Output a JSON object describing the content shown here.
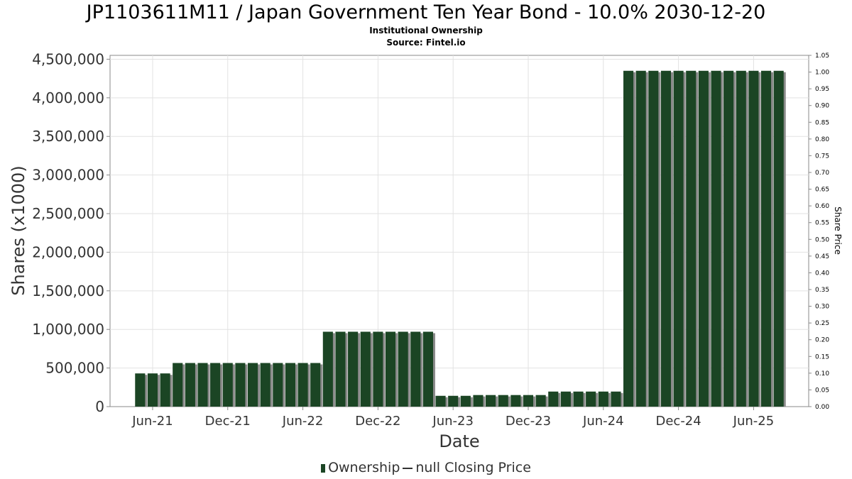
{
  "header": {
    "title": "JP1103611M11 / Japan Government Ten Year Bond - 10.0% 2030-12-20",
    "subtitle": "Institutional Ownership",
    "source": "Source: Fintel.io"
  },
  "legend": {
    "ownership": "Ownership",
    "price": "null Closing Price"
  },
  "colors": {
    "bar": "#1b4524",
    "bar_shadow": "#8a8a8a",
    "grid": "#e2e2e2",
    "axis": "#888888"
  },
  "chart_data": {
    "type": "bar",
    "title": "JP1103611M11 / Japan Government Ten Year Bond - 10.0% 2030-12-20",
    "subtitle": "Institutional Ownership",
    "xlabel": "Date",
    "ylabel": "Shares (x1000)",
    "y2label": "Share Price",
    "ylim": [
      0,
      4550000
    ],
    "y2lim": [
      0,
      1.05
    ],
    "grid": true,
    "legend_position": "bottom",
    "yticks": [
      "0",
      "500,000",
      "1,000,000",
      "1,500,000",
      "2,000,000",
      "2,500,000",
      "3,000,000",
      "3,500,000",
      "4,000,000",
      "4,500,000"
    ],
    "ytick_values": [
      0,
      500000,
      1000000,
      1500000,
      2000000,
      2500000,
      3000000,
      3500000,
      4000000,
      4500000
    ],
    "y2ticks": [
      "0.00",
      "0.05",
      "0.10",
      "0.15",
      "0.20",
      "0.25",
      "0.30",
      "0.35",
      "0.40",
      "0.45",
      "0.50",
      "0.55",
      "0.60",
      "0.65",
      "0.70",
      "0.75",
      "0.80",
      "0.85",
      "0.90",
      "0.95",
      "1.00",
      "1.05"
    ],
    "xticks": [
      "Jun-21",
      "Dec-21",
      "Jun-22",
      "Dec-22",
      "Jun-23",
      "Dec-23",
      "Jun-24",
      "Dec-24",
      "Jun-25"
    ],
    "xtick_month_index": [
      0,
      6,
      12,
      18,
      24,
      30,
      36,
      42,
      48
    ],
    "x_range_months": [
      -3.4,
      52.4
    ],
    "series": [
      {
        "name": "Ownership",
        "month_index": [
          -1,
          0,
          1,
          2,
          3,
          4,
          5,
          6,
          7,
          8,
          9,
          10,
          11,
          12,
          13,
          14,
          15,
          16,
          17,
          18,
          19,
          20,
          21,
          22,
          23,
          24,
          25,
          26,
          27,
          28,
          29,
          30,
          31,
          32,
          33,
          34,
          35,
          36,
          37,
          38,
          39,
          40,
          41,
          42,
          43,
          44,
          45,
          46,
          47,
          48,
          49,
          50
        ],
        "values": [
          430000,
          430000,
          430000,
          565000,
          565000,
          565000,
          565000,
          565000,
          565000,
          565000,
          565000,
          565000,
          565000,
          565000,
          565000,
          970000,
          970000,
          970000,
          970000,
          970000,
          970000,
          970000,
          970000,
          970000,
          140000,
          140000,
          140000,
          150000,
          150000,
          150000,
          150000,
          150000,
          150000,
          195000,
          195000,
          195000,
          195000,
          195000,
          195000,
          4350000,
          4350000,
          4350000,
          4350000,
          4350000,
          4350000,
          4350000,
          4350000,
          4350000,
          4350000,
          4350000,
          4350000,
          4350000
        ]
      }
    ]
  }
}
